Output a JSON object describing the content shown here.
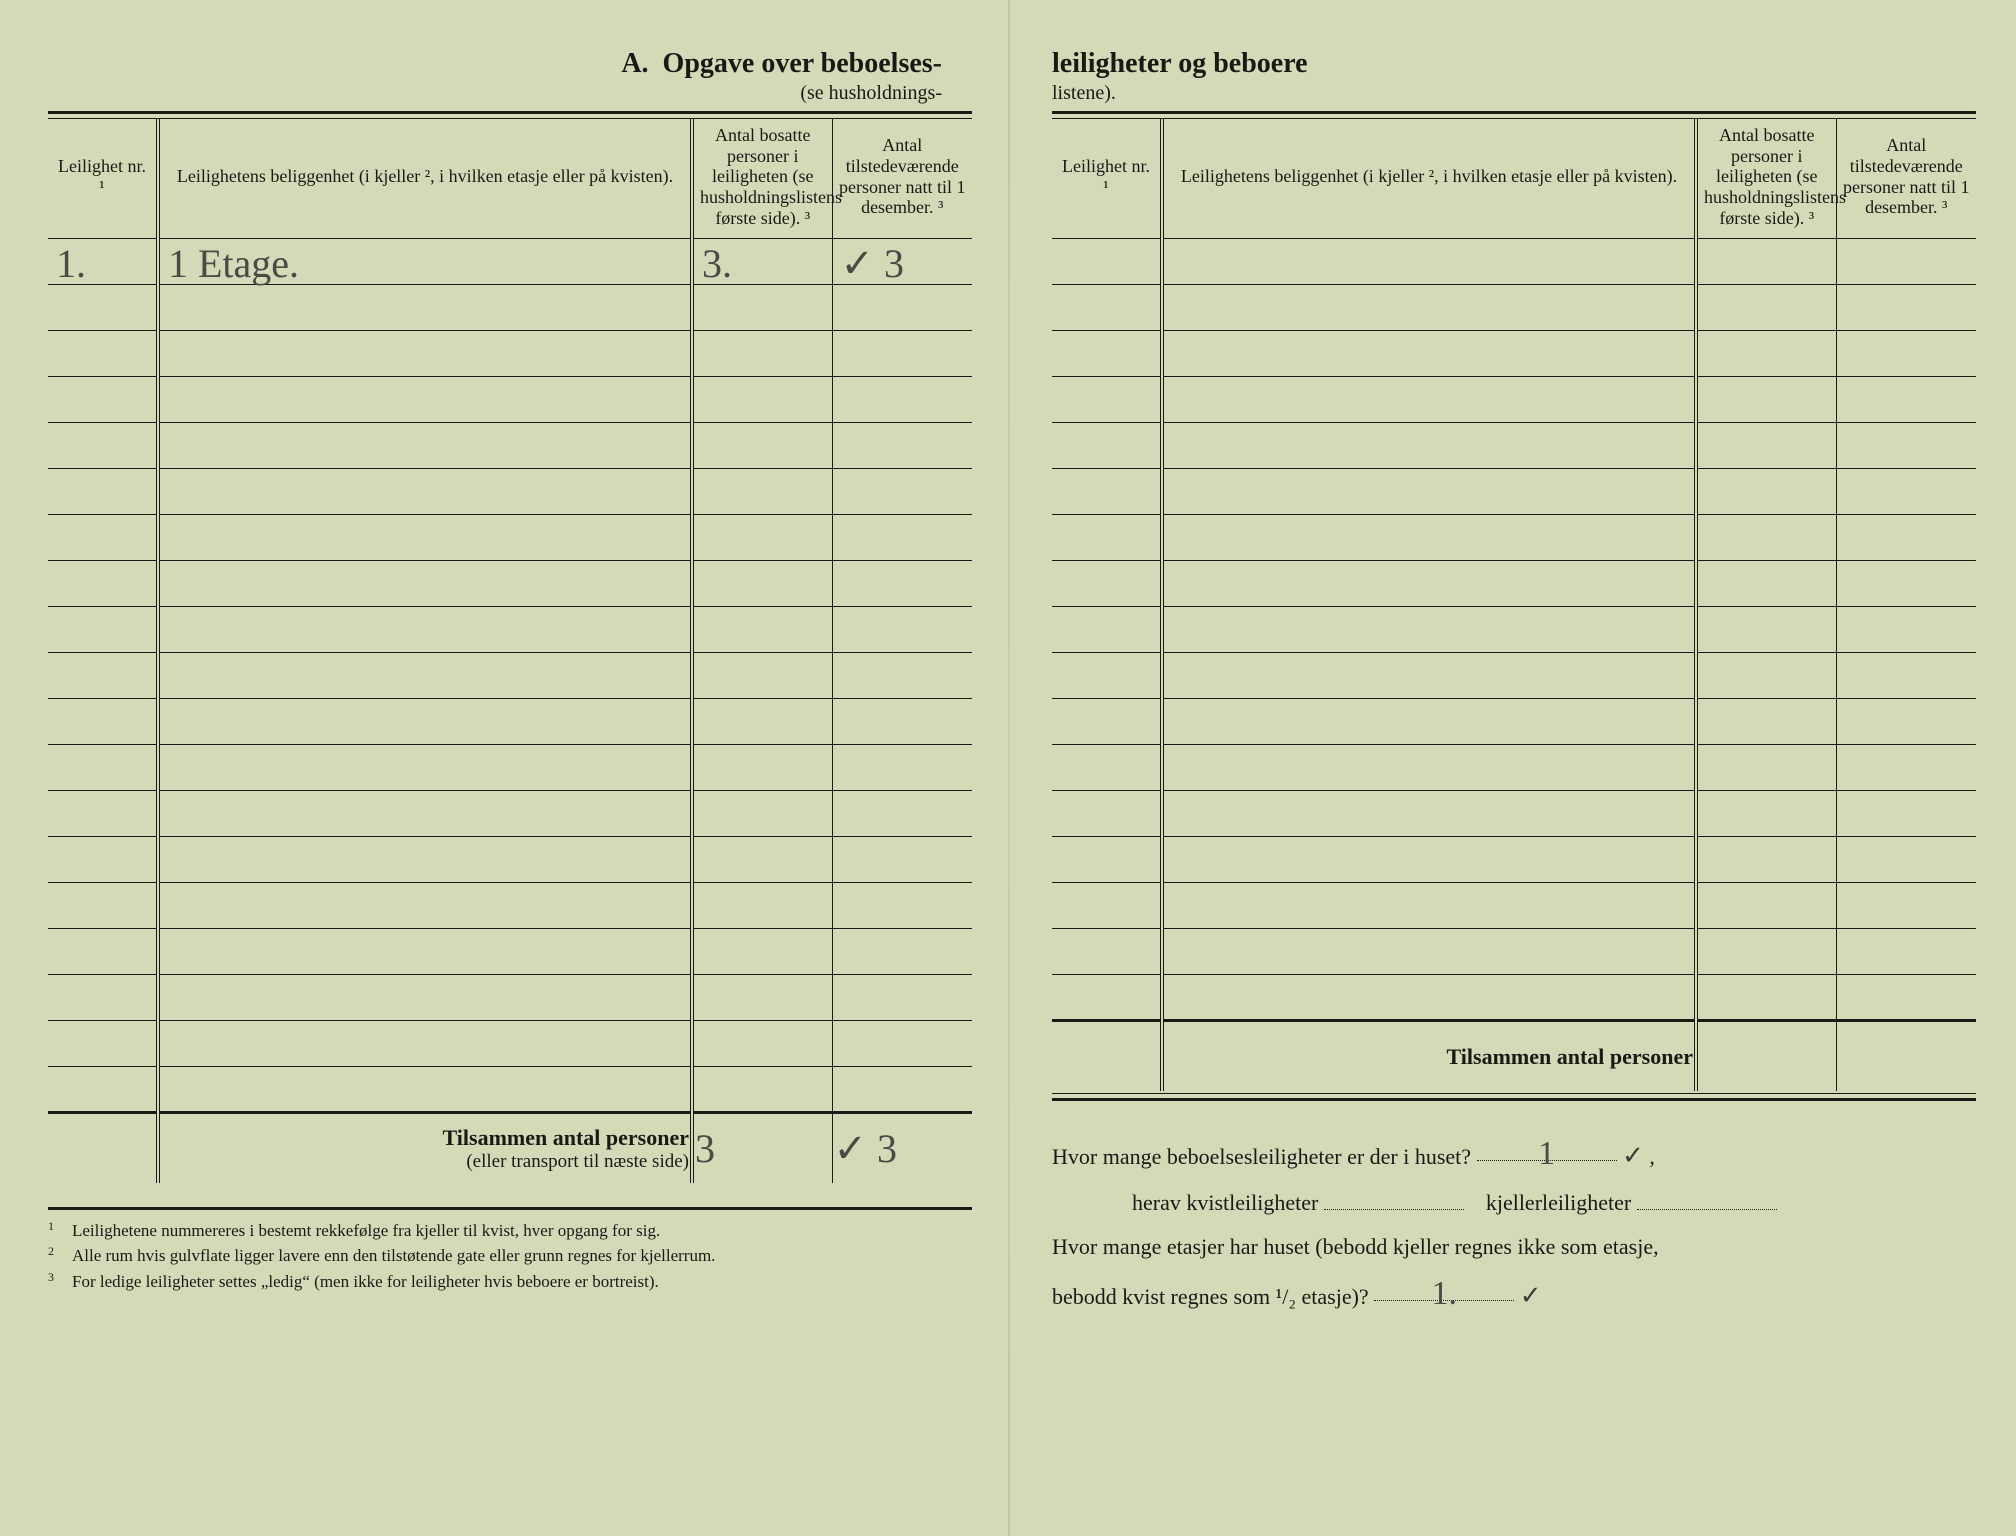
{
  "colors": {
    "paper": "#d5d9b8",
    "ink": "#1a1a15",
    "pencil": "#4b4b46"
  },
  "left": {
    "title_letter": "A.",
    "title_main": "Opgave over beboelses-",
    "subtitle": "(se husholdnings-",
    "headers": {
      "nr": "Leilighet nr. ¹",
      "loc": "Leilighetens beliggenhet (i kjeller ², i hvilken etasje eller på kvisten).",
      "p1": "Antal bosatte personer i leiligheten (se husholdningslistens første side). ³",
      "p2": "Antal tilstedeværende personer natt til 1 desember. ³"
    },
    "rows": [
      {
        "nr": "1.",
        "loc": "1 Etage.",
        "p1": "3.",
        "p2": "✓ 3"
      },
      {},
      {},
      {},
      {},
      {},
      {},
      {},
      {},
      {},
      {},
      {},
      {},
      {},
      {},
      {},
      {},
      {},
      {}
    ],
    "tilsammen_label": "Tilsammen antal personer",
    "tilsammen_sub": "(eller transport til næste side)",
    "tilsammen_p1": "3",
    "tilsammen_p2": "✓ 3",
    "footnotes": [
      "Leilighetene nummereres i bestemt rekkefølge fra kjeller til kvist, hver opgang for sig.",
      "Alle rum hvis gulvflate ligger lavere enn den tilstøtende gate eller grunn regnes for kjellerrum.",
      "For ledige leiligheter settes „ledig“ (men ikke for leiligheter hvis beboere er bortreist)."
    ]
  },
  "right": {
    "title_main": "leiligheter og beboere",
    "subtitle": "listene).",
    "headers": {
      "nr": "Leilighet nr. ¹",
      "loc": "Leilighetens beliggenhet (i kjeller ², i hvilken etasje eller på kvisten).",
      "p1": "Antal bosatte personer i leiligheten (se husholdningslistens første side). ³",
      "p2": "Antal tilstedeværende personer natt til 1 desember. ³"
    },
    "rows": [
      {},
      {},
      {},
      {},
      {},
      {},
      {},
      {},
      {},
      {},
      {},
      {},
      {},
      {},
      {},
      {},
      {}
    ],
    "tilsammen_label": "Tilsammen antal personer",
    "q1_a": "Hvor mange beboelsesleiligheter er der i huset?",
    "q1_val": "1",
    "q1_check": "✓",
    "q2_label_a": "herav kvistleiligheter",
    "q2_label_b": "kjellerleiligheter",
    "q3_a": "Hvor mange etasjer har huset (bebodd kjeller regnes ikke som etasje,",
    "q3_b": "bebodd kvist regnes som ¹/₂ etasje)?",
    "q3_val": "1.",
    "q3_check": "✓"
  }
}
